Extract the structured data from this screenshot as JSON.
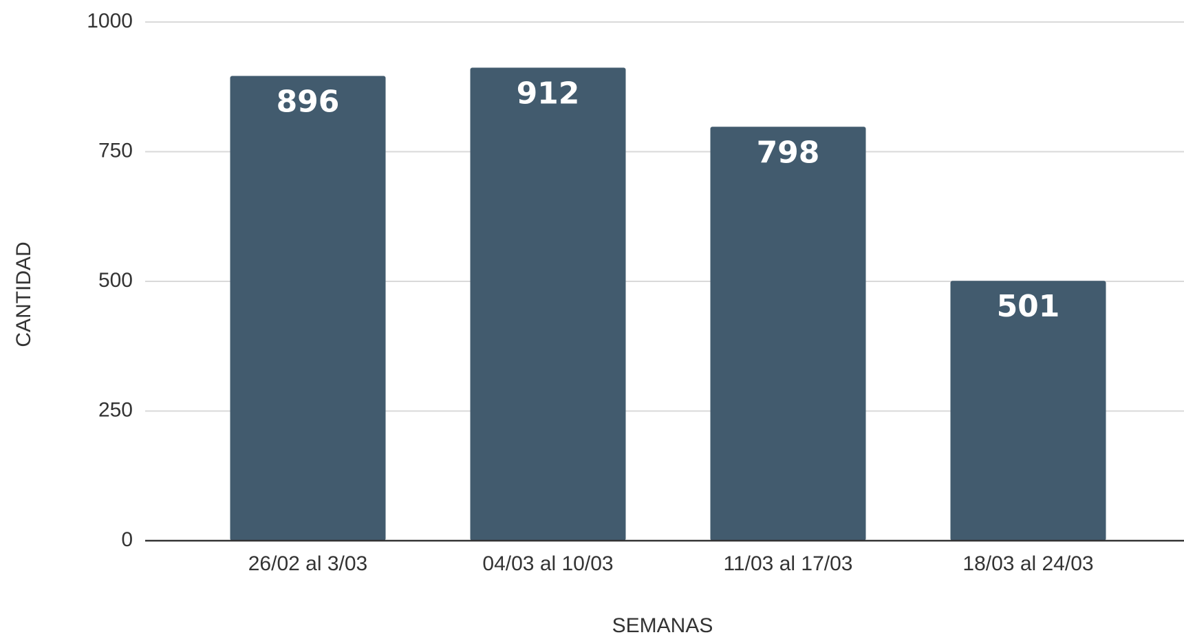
{
  "chart_data": {
    "type": "bar",
    "x_label": "SEMANAS",
    "y_label": "CANTIDAD",
    "categories": [
      "26/02 al 3/03",
      "04/03 al 10/03",
      "11/03 al 17/03",
      "18/03 al 24/03"
    ],
    "values": [
      896,
      912,
      798,
      501
    ],
    "color": "#425b6e",
    "ylim": [
      0,
      1000
    ],
    "yticks": [
      0,
      250,
      500,
      750,
      1000
    ],
    "grid": true
  }
}
